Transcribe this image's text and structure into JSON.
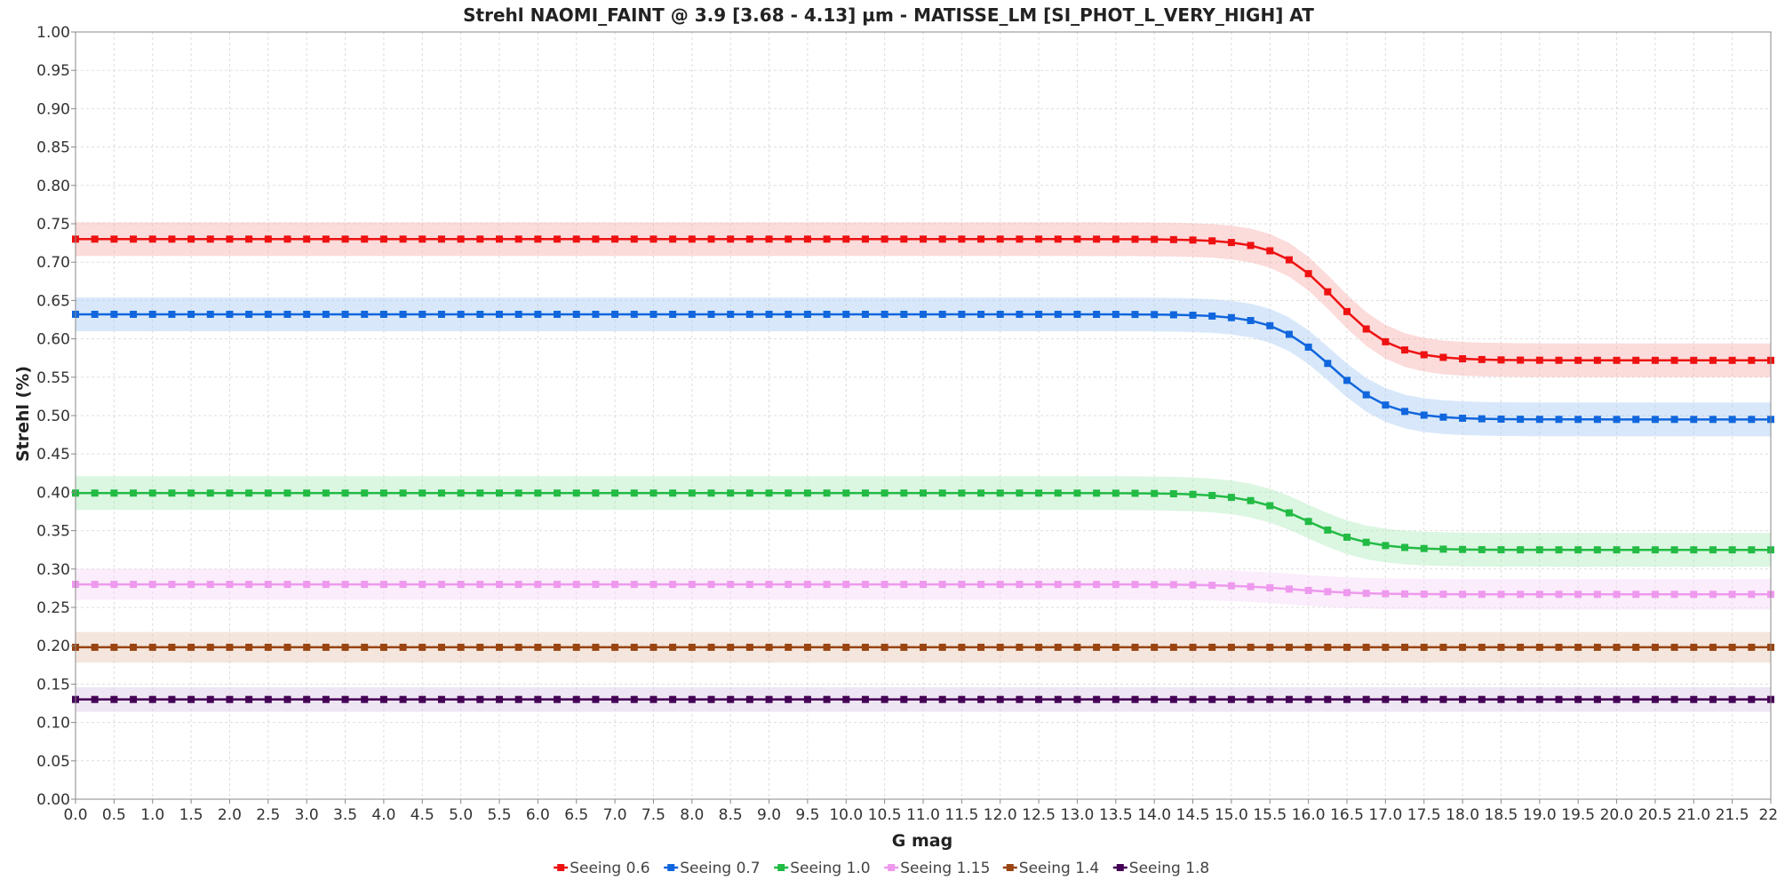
{
  "chart_data": {
    "type": "line",
    "title": "Strehl NAOMI_FAINT @ 3.9 [3.68 - 4.13] µm - MATISSE_LM [SI_PHOT_L_VERY_HIGH] AT",
    "xlabel": "G mag",
    "ylabel": "Strehl (%)",
    "xlim": [
      0,
      22
    ],
    "ylim": [
      0,
      1
    ],
    "x_ticks": [
      "0.0",
      "0.5",
      "1.0",
      "1.5",
      "2.0",
      "2.5",
      "3.0",
      "3.5",
      "4.0",
      "4.5",
      "5.0",
      "5.5",
      "6.0",
      "6.5",
      "7.0",
      "7.5",
      "8.0",
      "8.5",
      "9.0",
      "9.5",
      "10.0",
      "10.5",
      "11.0",
      "11.5",
      "12.0",
      "12.5",
      "13.0",
      "13.5",
      "14.0",
      "14.5",
      "15.0",
      "15.5",
      "16.0",
      "16.5",
      "17.0",
      "17.5",
      "18.0",
      "18.5",
      "19.0",
      "19.5",
      "20.0",
      "20.5",
      "21.0",
      "21.5",
      "22."
    ],
    "y_ticks": [
      "0.00",
      "0.05",
      "0.10",
      "0.15",
      "0.20",
      "0.25",
      "0.30",
      "0.35",
      "0.40",
      "0.45",
      "0.50",
      "0.55",
      "0.60",
      "0.65",
      "0.70",
      "0.75",
      "0.80",
      "0.85",
      "0.90",
      "0.95",
      "1.00"
    ],
    "grid": true,
    "legend_position": "bottom",
    "x_step": 0.25,
    "series": [
      {
        "name": "Seeing 0.6",
        "color": "#ee1111",
        "band_color": "#f8b0b0",
        "band": 0.022,
        "faint": 0.572,
        "x0": 16.35,
        "w": 0.38
      },
      {
        "name": "Seeing 0.7",
        "color": "#1166dd",
        "band_color": "#a8cdf3",
        "band": 0.022,
        "faint": 0.495,
        "x0": 16.3,
        "w": 0.38
      },
      {
        "name": "Seeing 1.0",
        "color": "#22bb44",
        "band_color": "#b0ecbc",
        "band": 0.022,
        "faint": 0.325,
        "x0": 16.0,
        "w": 0.4
      },
      {
        "name": "Seeing 1.15",
        "color": "#ee99ee",
        "band_color": "#f6d8f6",
        "band": 0.02,
        "faint": 0.267,
        "x0": 15.8,
        "w": 0.45
      },
      {
        "name": "Seeing 1.4",
        "color": "#994411",
        "band_color": "#e9c8b4",
        "band": 0.02,
        "faint": 0.198,
        "x0": 15.0,
        "w": 0.5
      },
      {
        "name": "Seeing 1.8",
        "color": "#440055",
        "band_color": "#dcc8e6",
        "band": 0.016,
        "faint": 0.13,
        "x0": 15.0,
        "w": 0.5
      }
    ],
    "bright_values": [
      0.73,
      0.632,
      0.399,
      0.28,
      0.198,
      0.13
    ]
  }
}
